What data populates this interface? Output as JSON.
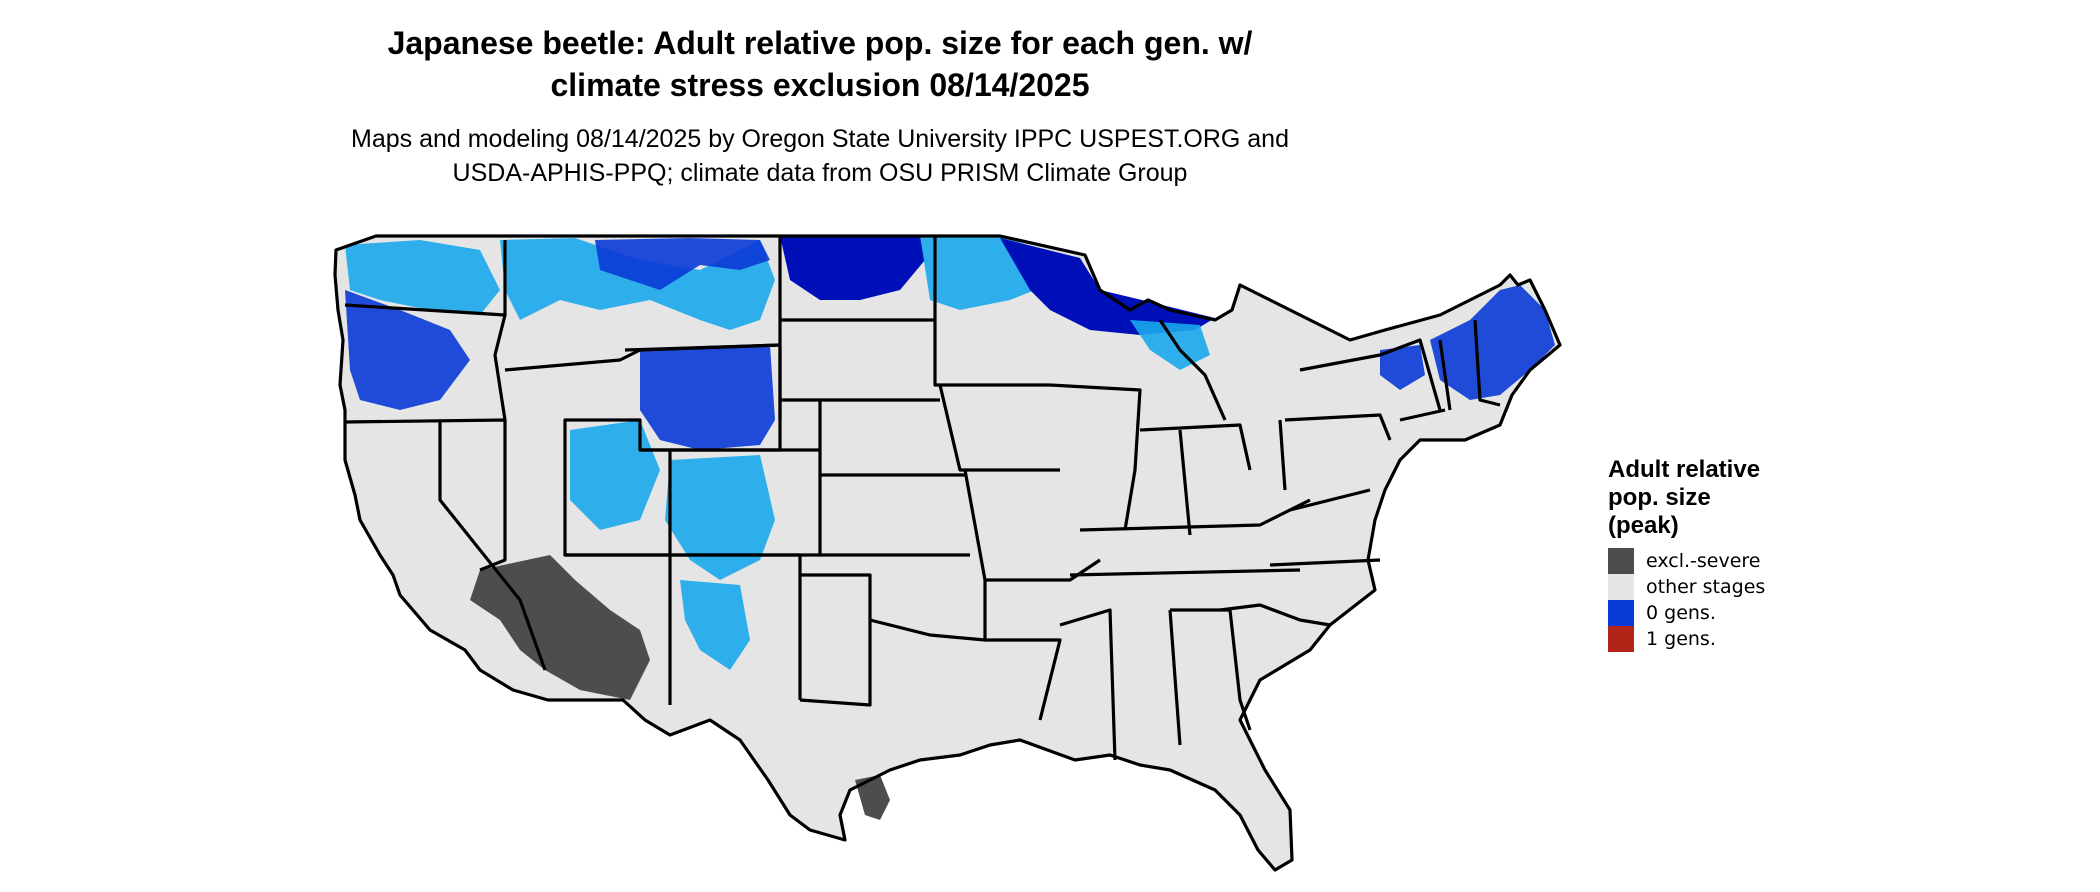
{
  "title": {
    "line1": "Japanese beetle: Adult relative pop. size for each gen. w/",
    "line2": "climate stress exclusion 08/14/2025"
  },
  "subtitle": {
    "line1": "Maps and modeling 08/14/2025 by Oregon State University IPPC USPEST.ORG and",
    "line2": "USDA-APHIS-PPQ; climate data from OSU PRISM Climate Group"
  },
  "legend": {
    "title_lines": [
      "Adult relative",
      "pop. size",
      "(peak)"
    ],
    "items": [
      {
        "label": "excl.-severe",
        "color": "#4d4d4d"
      },
      {
        "label": "other stages",
        "color": "#e6e6e6"
      },
      {
        "label": "0 gens.",
        "color": "#0a3ad6"
      },
      {
        "label": "1 gens.",
        "color": "#b22418"
      }
    ]
  },
  "map": {
    "land_color": "#e5e5e5",
    "border_color": "#000000",
    "light_blue": "#1aa8ec",
    "mid_blue": "#0a3ad6",
    "dark_blue": "#0010b8"
  }
}
